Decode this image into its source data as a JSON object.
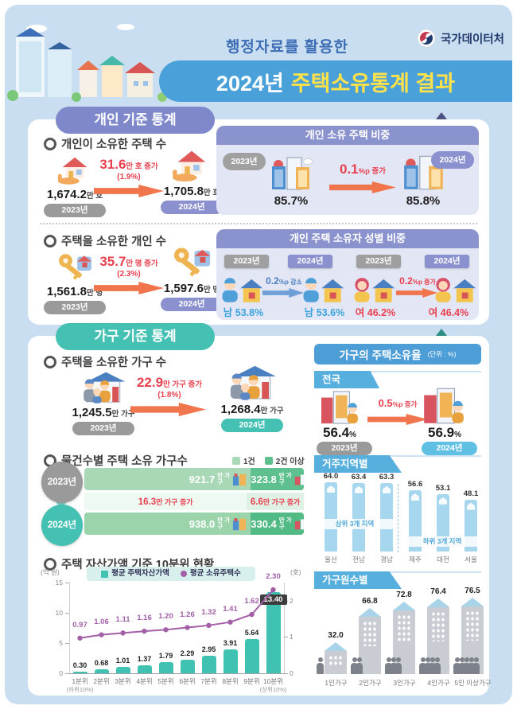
{
  "header": {
    "subtitle": "행정자료를 활용한",
    "title_prefix": "2024년",
    "title_main": "주택소유통계 결과",
    "agency": "국가데이터처"
  },
  "colors": {
    "banner_blue": "#4aa0d9",
    "title_yellow": "#ffe24a",
    "periwinkle": "#7f88cb",
    "teal": "#45c1b3",
    "orange_arrow": "#f0744c",
    "red": "#e8404f",
    "male_blue": "#3ba4da",
    "bar_teal": "#3fc2b2",
    "line_purple": "#a35fa8",
    "sky_blue": "#57afdd",
    "green_one": "#a9d8b6",
    "green_multi": "#5ec08e"
  },
  "individual": {
    "section_title": "개인 기준 통계",
    "homes": {
      "heading": "개인이 소유한 주택 수",
      "v2023": "1,674.2",
      "u2023": "만 호",
      "b2023": "2023년",
      "chg": "31.6",
      "chg_unit": "만 호 증가",
      "chg_pct": "(1.9%)",
      "v2024": "1,705.8",
      "u2024": "만 호",
      "b2024": "2024년"
    },
    "owners": {
      "heading": "주택을 소유한 개인 수",
      "v2023": "1,561.8",
      "u2023": "만 명",
      "b2023": "2023년",
      "chg": "35.7",
      "chg_unit": "만 명 증가",
      "chg_pct": "(2.3%)",
      "v2024": "1,597.6",
      "u2024": "만 명",
      "b2024": "2024년"
    },
    "share": {
      "title": "개인 소유 주택 비중",
      "bubble2023": "2023년",
      "v2023": "85.7%",
      "chg": "0.1",
      "chg_unit": "%p 증가",
      "v2024": "85.8%",
      "bubble2024": "2024년"
    },
    "gender": {
      "title": "개인 주택 소유자 성별 비중",
      "male": {
        "b2023": "2023년",
        "b2024": "2024년",
        "chg": "0.2",
        "chg_unit": "%p 감소",
        "v2023": "남 53.8%",
        "v2024": "남 53.6%"
      },
      "female": {
        "b2023": "2023년",
        "b2024": "2024년",
        "chg": "0.2",
        "chg_unit": "%p 증가",
        "v2023": "여 46.2%",
        "v2024": "여 46.4%"
      }
    }
  },
  "household": {
    "section_title": "가구 기준 통계",
    "count": {
      "heading": "주택을 소유한 가구 수",
      "v2023": "1,245.5",
      "u2023": "만 가구",
      "b2023": "2023년",
      "chg": "22.9",
      "chg_unit": "만 가구 증가",
      "chg_pct": "(1.8%)",
      "v2024": "1,268.4",
      "u2024": "만 가구",
      "b2024": "2024년"
    },
    "by_units": {
      "heading": "물건수별 주택 소유 가구수",
      "legend1": "1건",
      "legend2": "2건 이상",
      "rows": [
        {
          "year": "2023년",
          "one": "921.7",
          "multi": "323.8",
          "unit": "만 가구"
        },
        {
          "year": "2024년",
          "one": "938.0",
          "multi": "330.4",
          "unit": "만 가구"
        }
      ],
      "chg_one": "16.3",
      "chg_one_unit": "만 가구 증가",
      "chg_multi": "6.6",
      "chg_multi_unit": "만 가구 증가"
    },
    "decile_heading": "주택 자산가액 기준 10분위 현황"
  },
  "right": {
    "title": "가구의 주택소유율",
    "unit_note": "(단위 : %)",
    "national": {
      "tab": "전국",
      "v2023": "56.4",
      "pct": "%",
      "b2023": "2023년",
      "chg": "0.5",
      "chg_unit": "%p 증가",
      "v2024": "56.9",
      "b2024": "2024년"
    },
    "region": {
      "tab": "거주지역별"
    },
    "size": {
      "tab": "가구원수별"
    }
  },
  "chart_data": [
    {
      "type": "bar",
      "title": "물건수별 주택 소유 가구수",
      "unit": "만 가구",
      "categories": [
        "2023년",
        "2024년"
      ],
      "series": [
        {
          "name": "1건",
          "values": [
            921.7,
            938.0
          ]
        },
        {
          "name": "2건 이상",
          "values": [
            323.8,
            330.4
          ]
        }
      ],
      "changes": [
        {
          "name": "1건",
          "value": 16.3
        },
        {
          "name": "2건 이상",
          "value": 6.6
        }
      ]
    },
    {
      "type": "bar",
      "title": "주택 자산가액 기준 10분위 현황",
      "categories": [
        "1분위",
        "2분위",
        "3분위",
        "4분위",
        "5분위",
        "6분위",
        "7분위",
        "8분위",
        "9분위",
        "10분위"
      ],
      "note_first": "(하위10%)",
      "note_last": "(상위10%)",
      "series": [
        {
          "name": "평균 주택자산가액",
          "type": "bar",
          "unit": "억 원",
          "values": [
            0.3,
            0.68,
            1.01,
            1.37,
            1.79,
            2.29,
            2.95,
            3.91,
            5.64,
            13.4
          ],
          "labels": [
            "0.30",
            "0.68",
            "1.01",
            "1.37",
            "1.79",
            "2.29",
            "2.95",
            "3.91",
            "5.64",
            "13.40"
          ]
        },
        {
          "name": "평균 소유주택수",
          "type": "line",
          "unit": "호",
          "values": [
            0.97,
            1.06,
            1.11,
            1.16,
            1.2,
            1.26,
            1.32,
            1.41,
            1.62,
            2.3
          ],
          "labels": [
            "0.97",
            "1.06",
            "1.11",
            "1.16",
            "1.20",
            "1.26",
            "1.32",
            "1.41",
            "1.62",
            "2.30"
          ]
        }
      ],
      "left_axis": {
        "label": "(억 원)",
        "ticks": [
          "0",
          "5",
          "10",
          "15"
        ],
        "max": 15
      },
      "right_axis": {
        "label": "(호)",
        "ticks": [
          "0",
          "1",
          "2"
        ],
        "max": 2.5
      },
      "legend_position": "top"
    },
    {
      "type": "bar",
      "title": "거주지역별 주택소유율",
      "ylabel": "%",
      "groups": [
        {
          "label": "상위 3개 지역",
          "categories": [
            "울산",
            "전남",
            "경남"
          ],
          "values": [
            64.0,
            63.4,
            63.3
          ],
          "labels": [
            "64.0",
            "63.4",
            "63.3"
          ]
        },
        {
          "label": "하위 3개 지역",
          "categories": [
            "제주",
            "대전",
            "서울"
          ],
          "values": [
            56.6,
            53.1,
            48.1
          ],
          "labels": [
            "56.6",
            "53.1",
            "48.1"
          ]
        }
      ]
    },
    {
      "type": "bar",
      "title": "가구원수별 주택소유율",
      "ylabel": "%",
      "categories": [
        "1인가구",
        "2인가구",
        "3인가구",
        "4인가구",
        "5인 이상가구"
      ],
      "values": [
        32.0,
        66.8,
        72.8,
        76.4,
        76.5
      ],
      "labels": [
        "32.0",
        "66.8",
        "72.8",
        "76.4",
        "76.5"
      ]
    }
  ]
}
